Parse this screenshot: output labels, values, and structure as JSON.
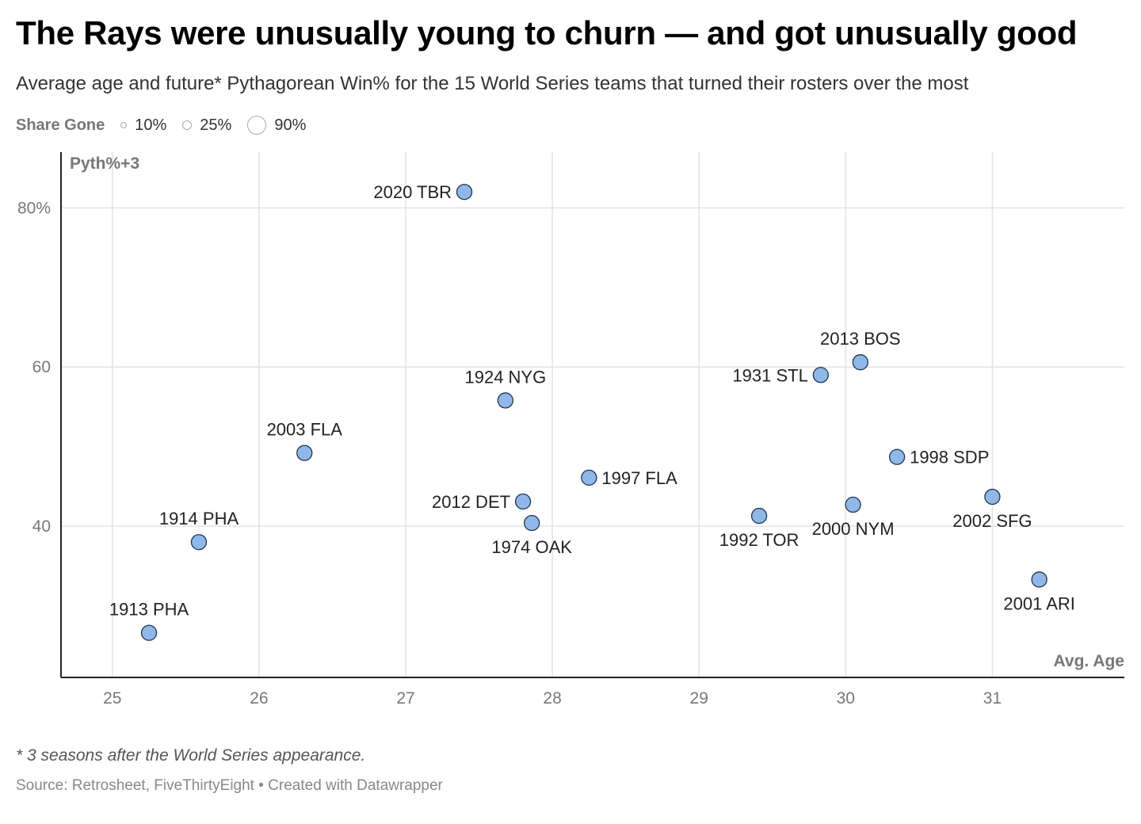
{
  "header": {
    "title": "The Rays were unusually young to churn — and got unusually good",
    "subtitle": "Average age and future* Pythagorean Win% for the 15 World Series teams that turned their rosters over the most"
  },
  "legend": {
    "title": "Share Gone",
    "items": [
      "10%",
      "25%",
      "90%"
    ]
  },
  "footer": {
    "footnote": "* 3 seasons after the World Series appearance.",
    "source": "Source: Retrosheet, FiveThirtyEight • Created with Datawrapper"
  },
  "colors": {
    "point_fill": "#8fb8e8",
    "point_stroke": "#1f3550",
    "grid": "#e2e2e2"
  },
  "chart_data": {
    "type": "scatter",
    "xlabel": "Avg. Age",
    "ylabel": "Pyth%+3",
    "xlim": [
      24.65,
      31.9
    ],
    "ylim": [
      21,
      87
    ],
    "x_ticks": [
      25,
      26,
      27,
      28,
      29,
      30,
      31
    ],
    "y_ticks": [
      40,
      60,
      80
    ],
    "y_tick_labels": [
      "40",
      "60",
      "80%"
    ],
    "grid": true,
    "points": [
      {
        "label": "2020 TBR",
        "x": 27.4,
        "y": 82.0,
        "label_pos": "left"
      },
      {
        "label": "2013 BOS",
        "x": 30.1,
        "y": 60.6,
        "label_pos": "above"
      },
      {
        "label": "1931 STL",
        "x": 29.83,
        "y": 59.0,
        "label_pos": "left"
      },
      {
        "label": "1924 NYG",
        "x": 27.68,
        "y": 55.8,
        "label_pos": "above"
      },
      {
        "label": "2003 FLA",
        "x": 26.31,
        "y": 49.2,
        "label_pos": "above"
      },
      {
        "label": "1998 SDP",
        "x": 30.35,
        "y": 48.7,
        "label_pos": "right"
      },
      {
        "label": "1997 FLA",
        "x": 28.25,
        "y": 46.1,
        "label_pos": "right"
      },
      {
        "label": "2002 SFG",
        "x": 31.0,
        "y": 43.7,
        "label_pos": "below"
      },
      {
        "label": "2012 DET",
        "x": 27.8,
        "y": 43.1,
        "label_pos": "left"
      },
      {
        "label": "2000 NYM",
        "x": 30.05,
        "y": 42.7,
        "label_pos": "below"
      },
      {
        "label": "1992 TOR",
        "x": 29.41,
        "y": 41.3,
        "label_pos": "below"
      },
      {
        "label": "1974 OAK",
        "x": 27.86,
        "y": 40.4,
        "label_pos": "below"
      },
      {
        "label": "1914 PHA",
        "x": 25.59,
        "y": 38.0,
        "label_pos": "above"
      },
      {
        "label": "2001 ARI",
        "x": 31.32,
        "y": 33.3,
        "label_pos": "below"
      },
      {
        "label": "1913 PHA",
        "x": 25.25,
        "y": 26.6,
        "label_pos": "above"
      }
    ]
  }
}
